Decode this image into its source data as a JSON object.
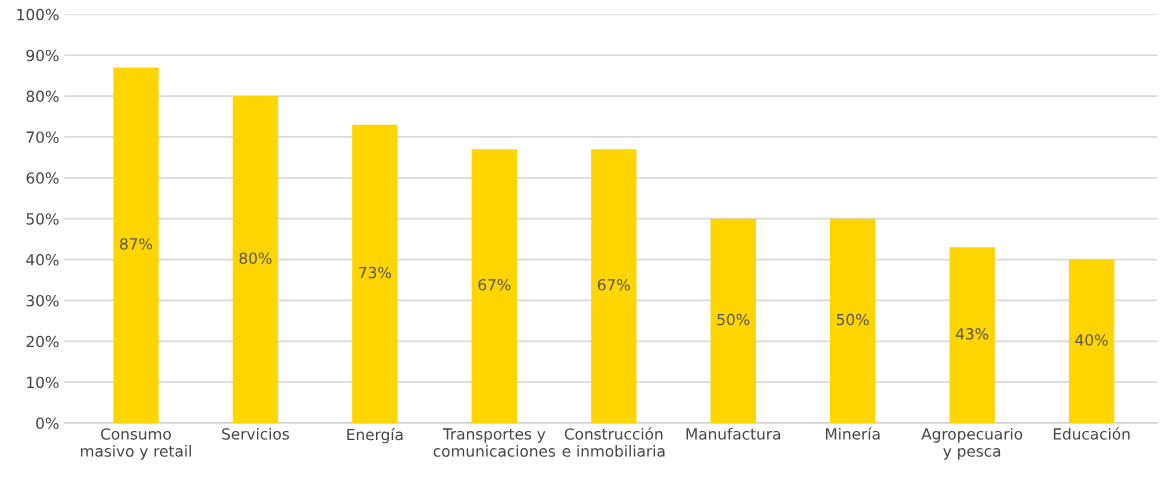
{
  "chart_data": {
    "type": "bar",
    "categories": [
      "Consumo\nmasivo y retail",
      "Servicios",
      "Energía",
      "Transportes y\ncomunicaciones",
      "Construcción\ne inmobiliaria",
      "Manufactura",
      "Minería",
      "Agropecuario\ny pesca",
      "Educación"
    ],
    "values": [
      87,
      80,
      73,
      67,
      67,
      50,
      50,
      43,
      40
    ],
    "value_labels": [
      "87%",
      "80%",
      "73%",
      "67%",
      "67%",
      "50%",
      "50%",
      "43%",
      "40%"
    ],
    "color": "#ffd500",
    "ylim": [
      0,
      100
    ],
    "yticks": [
      {
        "value": 0,
        "label": "0%"
      },
      {
        "value": 10,
        "label": "10%"
      },
      {
        "value": 20,
        "label": "20%"
      },
      {
        "value": 30,
        "label": "30%"
      },
      {
        "value": 40,
        "label": "40%"
      },
      {
        "value": 50,
        "label": "50%"
      },
      {
        "value": 60,
        "label": "60%"
      },
      {
        "value": 70,
        "label": "70%"
      },
      {
        "value": 80,
        "label": "80%"
      },
      {
        "value": 90,
        "label": "90%"
      },
      {
        "value": 100,
        "label": "100%"
      }
    ],
    "grid": "y"
  }
}
